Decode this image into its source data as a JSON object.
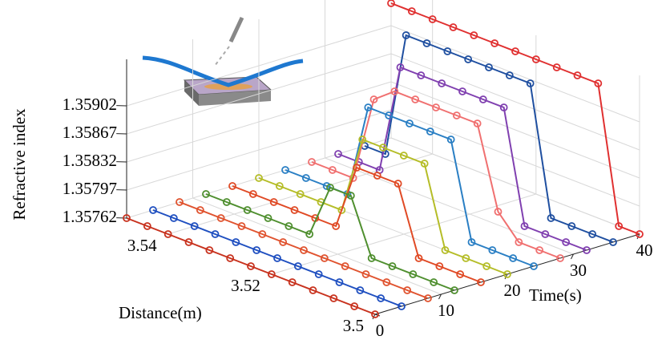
{
  "chart_data": {
    "type": "line3d",
    "xlabel": "Distance(m)",
    "ylabel": "Time(s)",
    "zlabel": "Refractive index",
    "x": [
      3.5,
      3.504,
      3.508,
      3.512,
      3.516,
      3.52,
      3.524,
      3.528,
      3.532,
      3.536,
      3.54,
      3.544,
      3.548
    ],
    "xlim": [
      3.5,
      3.548
    ],
    "xticks": [
      3.5,
      3.52,
      3.54
    ],
    "ylim": [
      0,
      40
    ],
    "yticks": [
      0,
      10,
      20,
      30,
      40
    ],
    "zlim": [
      1.35762,
      1.3596
    ],
    "zticks": [
      1.35762,
      1.35797,
      1.35832,
      1.35867,
      1.35902
    ],
    "grid": true,
    "series": [
      {
        "time": 0,
        "color": "#c8321e",
        "values": [
          1.35762,
          1.35762,
          1.35762,
          1.35762,
          1.35762,
          1.35762,
          1.35762,
          1.35762,
          1.35762,
          1.35762,
          1.35762,
          1.35762,
          1.35762
        ]
      },
      {
        "time": 4,
        "color": "#1f4fc0",
        "values": [
          1.35762,
          1.35762,
          1.35762,
          1.35762,
          1.35762,
          1.35762,
          1.35762,
          1.35762,
          1.35762,
          1.35762,
          1.35762,
          1.35762,
          1.35762
        ]
      },
      {
        "time": 8,
        "color": "#e0532f",
        "values": [
          1.35762,
          1.35762,
          1.35762,
          1.35762,
          1.35762,
          1.35762,
          1.35762,
          1.35762,
          1.35762,
          1.35762,
          1.35762,
          1.35762,
          1.35762
        ]
      },
      {
        "time": 12,
        "color": "#4f8f2f",
        "values": [
          1.35762,
          1.35762,
          1.35762,
          1.35762,
          1.35762,
          1.3583,
          1.3583,
          1.35762,
          1.35762,
          1.35762,
          1.35762,
          1.35762,
          1.35762
        ]
      },
      {
        "time": 16,
        "color": "#e04a25",
        "values": [
          1.35762,
          1.35762,
          1.35762,
          1.35762,
          1.35845,
          1.35845,
          1.35845,
          1.35762,
          1.35762,
          1.35762,
          1.35762,
          1.35762,
          1.35762
        ]
      },
      {
        "time": 20,
        "color": "#b5bd28",
        "values": [
          1.35762,
          1.35762,
          1.35762,
          1.35762,
          1.3586,
          1.3586,
          1.3586,
          1.3586,
          1.35762,
          1.35762,
          1.35762,
          1.35762,
          1.35762
        ]
      },
      {
        "time": 24,
        "color": "#2a7fc4",
        "values": [
          1.35762,
          1.35762,
          1.35762,
          1.35762,
          1.3588,
          1.3588,
          1.3588,
          1.3588,
          1.3588,
          1.35762,
          1.35762,
          1.35762,
          1.35762
        ]
      },
      {
        "time": 28,
        "color": "#f07070",
        "values": [
          1.35762,
          1.35762,
          1.35762,
          1.3579,
          1.3589,
          1.3589,
          1.3589,
          1.3589,
          1.3589,
          1.3587,
          1.35762,
          1.35762,
          1.35762
        ]
      },
      {
        "time": 32,
        "color": "#8040b0",
        "values": [
          1.35762,
          1.35762,
          1.35762,
          1.35762,
          1.359,
          1.359,
          1.359,
          1.359,
          1.359,
          1.359,
          1.35762,
          1.35762,
          1.35762
        ]
      },
      {
        "time": 36,
        "color": "#1f4fa0",
        "values": [
          1.35762,
          1.35762,
          1.35762,
          1.35762,
          1.3592,
          1.3592,
          1.3592,
          1.3592,
          1.3592,
          1.3592,
          1.3592,
          1.35762,
          1.35762
        ]
      },
      {
        "time": 40,
        "color": "#e03030",
        "values": [
          1.35762,
          1.35762,
          1.3593,
          1.3593,
          1.3593,
          1.3593,
          1.3593,
          1.3593,
          1.3593,
          1.3593,
          1.3593,
          1.3593,
          1.3593
        ]
      }
    ]
  }
}
